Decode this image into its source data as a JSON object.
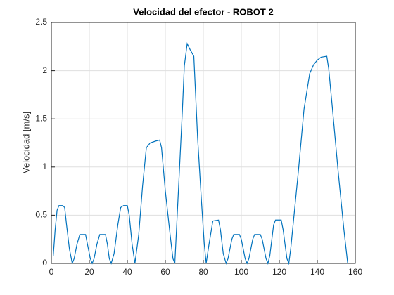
{
  "chart_data": {
    "type": "line",
    "title": "Velocidad del efector - ROBOT 2",
    "y_label": "Velocidad [m/s]",
    "xlim": [
      0,
      160
    ],
    "xticks": [
      0,
      20,
      40,
      60,
      80,
      100,
      120,
      140,
      160
    ],
    "ylim": [
      0,
      2.5
    ],
    "yticks": [
      0,
      0.5,
      1,
      1.5,
      2,
      2.5
    ],
    "grid": true,
    "series": [
      {
        "color": "#0072bd",
        "x": [
          1,
          2,
          3,
          4,
          6,
          7,
          8,
          9.5,
          11,
          12,
          13.5,
          15,
          18,
          19,
          20.5,
          21.5,
          22.5,
          24,
          25.5,
          28.5,
          29.5,
          30.5,
          31.5,
          33,
          35,
          36.5,
          38,
          40,
          41,
          42.5,
          44,
          46,
          48,
          50,
          52,
          55,
          57,
          58,
          60,
          62.5,
          64,
          65,
          67,
          69,
          70,
          71.5,
          73,
          75,
          77,
          79,
          80.5,
          81.5,
          83,
          85,
          88,
          89,
          90.5,
          92,
          93,
          95,
          96,
          99,
          100,
          102,
          103,
          104,
          106,
          107,
          110,
          111,
          113,
          114,
          115,
          117,
          118,
          121,
          122,
          124,
          125,
          126,
          130,
          133,
          136,
          138,
          140,
          142,
          145,
          146,
          148,
          151,
          154,
          156
        ],
        "values": [
          0.08,
          0.35,
          0.55,
          0.6,
          0.6,
          0.58,
          0.4,
          0.15,
          0,
          0.05,
          0.2,
          0.3,
          0.3,
          0.2,
          0.05,
          0,
          0.05,
          0.2,
          0.3,
          0.3,
          0.2,
          0.05,
          0,
          0.1,
          0.4,
          0.58,
          0.6,
          0.6,
          0.5,
          0.2,
          0,
          0.3,
          0.8,
          1.2,
          1.25,
          1.27,
          1.28,
          1.2,
          0.75,
          0.3,
          0.05,
          0,
          0.8,
          1.6,
          2.05,
          2.28,
          2.22,
          2.15,
          1.3,
          0.65,
          0.2,
          0,
          0.2,
          0.44,
          0.45,
          0.35,
          0.1,
          0,
          0.05,
          0.25,
          0.3,
          0.3,
          0.25,
          0.05,
          0,
          0.05,
          0.25,
          0.3,
          0.3,
          0.25,
          0.05,
          0,
          0.08,
          0.4,
          0.45,
          0.45,
          0.35,
          0.05,
          0,
          0.15,
          0.95,
          1.6,
          1.97,
          2.06,
          2.11,
          2.14,
          2.15,
          2.02,
          1.6,
          0.95,
          0.35,
          0
        ]
      }
    ]
  }
}
